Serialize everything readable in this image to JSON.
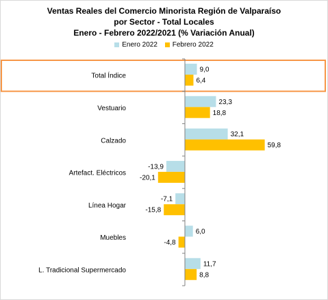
{
  "colors": {
    "enero": "#b7dee8",
    "febrero": "#ffc000",
    "highlight": "#f79646",
    "axis": "#7f7f7f"
  },
  "chart_data": {
    "type": "bar",
    "orientation": "horizontal",
    "title_lines": [
      "Ventas Reales del Comercio Minorista Región de Valparaíso",
      "por Sector - Total Locales",
      "Enero - Febrero 2022/2021 (% Variación Anual)"
    ],
    "categories": [
      "Total Índice",
      "Vestuario",
      "Calzado",
      "Artefact. Eléctricos",
      "Línea Hogar",
      "Muebles",
      "L. Tradicional Supermercado"
    ],
    "series": [
      {
        "name": "Enero 2022",
        "values": [
          9.0,
          23.3,
          32.1,
          -13.9,
          -7.1,
          6.0,
          11.7
        ],
        "labels": [
          "9,0",
          "23,3",
          "32,1",
          "-13,9",
          "-7,1",
          "6,0",
          "11,7"
        ]
      },
      {
        "name": "Febrero 2022",
        "values": [
          6.4,
          18.8,
          59.8,
          -20.1,
          -15.8,
          -4.8,
          8.8
        ],
        "labels": [
          "6,4",
          "18,8",
          "59,8",
          "-20,1",
          "-15,8",
          "-4,8",
          "8,8"
        ]
      }
    ],
    "highlighted_category": "Total Índice",
    "legend_position": "top",
    "grid": false
  }
}
